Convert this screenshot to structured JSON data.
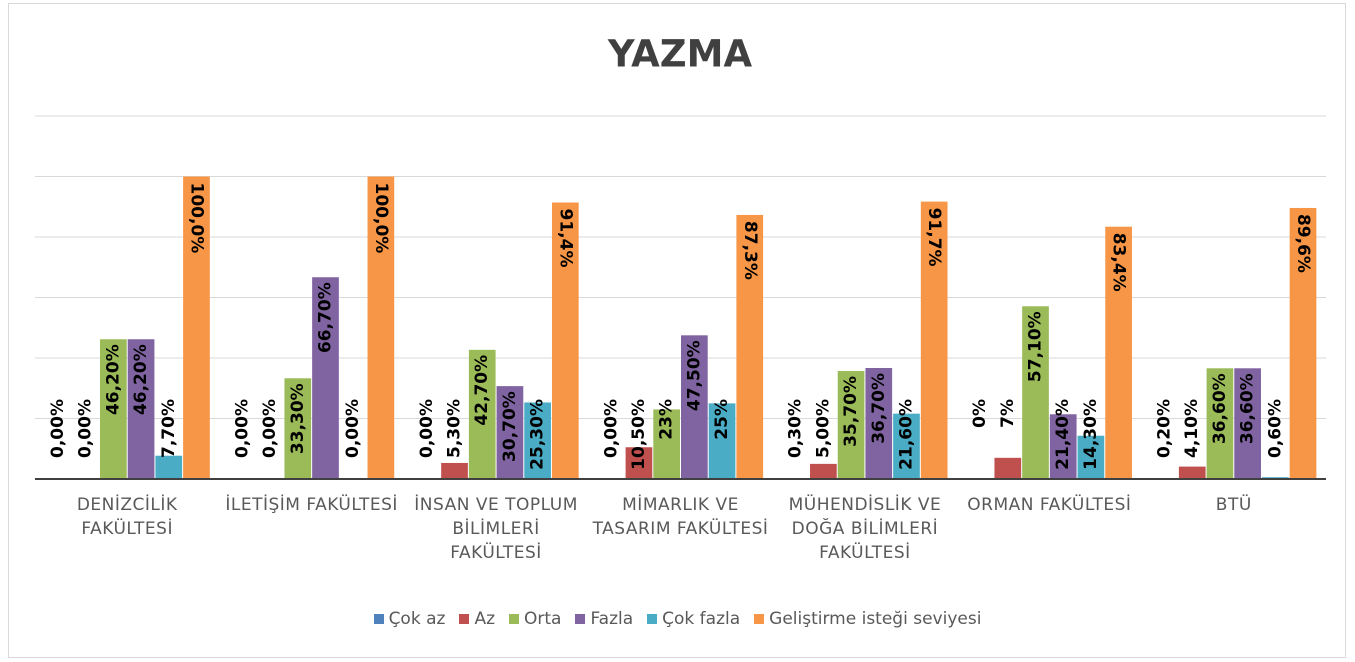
{
  "chart_data": {
    "type": "bar",
    "title": "YAZMA",
    "categories": [
      "DENİZCİLİK FAKÜLTESİ",
      "İLETİŞİM FAKÜLTESİ",
      "İNSAN VE TOPLUM BİLİMLERİ FAKÜLTESİ",
      "MİMARLIK VE TASARIM FAKÜLTESİ",
      "MÜHENDİSLİK VE DOĞA BİLİMLERİ FAKÜLTESİ",
      "ORMAN FAKÜLTESİ",
      "BTÜ"
    ],
    "series": [
      {
        "name": "Çok az",
        "color": "#4f81bd",
        "values": [
          0,
          0,
          0,
          0,
          0.3,
          0,
          0.2
        ],
        "value_labels": [
          "0,00%",
          "0,00%",
          "0,00%",
          "0,00%",
          "0,30%",
          "0%",
          "0,20%"
        ]
      },
      {
        "name": "Az",
        "color": "#c0504d",
        "values": [
          0,
          0,
          5.3,
          10.5,
          5,
          7,
          4.1
        ],
        "value_labels": [
          "0,00%",
          "0,00%",
          "5,30%",
          "10,50%",
          "5,00%",
          "7%",
          "4,10%"
        ]
      },
      {
        "name": "Orta",
        "color": "#9bbb59",
        "values": [
          46.2,
          33.3,
          42.7,
          23,
          35.7,
          57.1,
          36.6
        ],
        "value_labels": [
          "46,20%",
          "33,30%",
          "42,70%",
          "23%",
          "35,70%",
          "57,10%",
          "36,60%"
        ]
      },
      {
        "name": "Fazla",
        "color": "#8064a2",
        "values": [
          46.2,
          66.7,
          30.7,
          47.5,
          36.7,
          21.4,
          36.6
        ],
        "value_labels": [
          "46,20%",
          "66,70%",
          "30,70%",
          "47,50%",
          "36,70%",
          "21,40%",
          "36,60%"
        ]
      },
      {
        "name": "Çok fazla",
        "color": "#4bacc6",
        "values": [
          7.7,
          0,
          25.3,
          25,
          21.6,
          14.3,
          0.6
        ],
        "value_labels": [
          "7,70%",
          "0,00%",
          "25,30%",
          "25%",
          "21,60%",
          "14,30%",
          "0,60%"
        ]
      },
      {
        "name": "Geliştirme isteği seviyesi",
        "color": "#f79646",
        "values": [
          100,
          100,
          91.4,
          87.3,
          91.7,
          83.4,
          89.6
        ],
        "value_labels": [
          "100,0%",
          "100,0%",
          "91,4%",
          "87,3%",
          "91,7%",
          "83,4%",
          "89,6%"
        ]
      }
    ],
    "ylim": [
      0,
      120
    ],
    "yticks": [
      0,
      20,
      40,
      60,
      80,
      100,
      120
    ],
    "grid": true,
    "legend": "bottom"
  }
}
